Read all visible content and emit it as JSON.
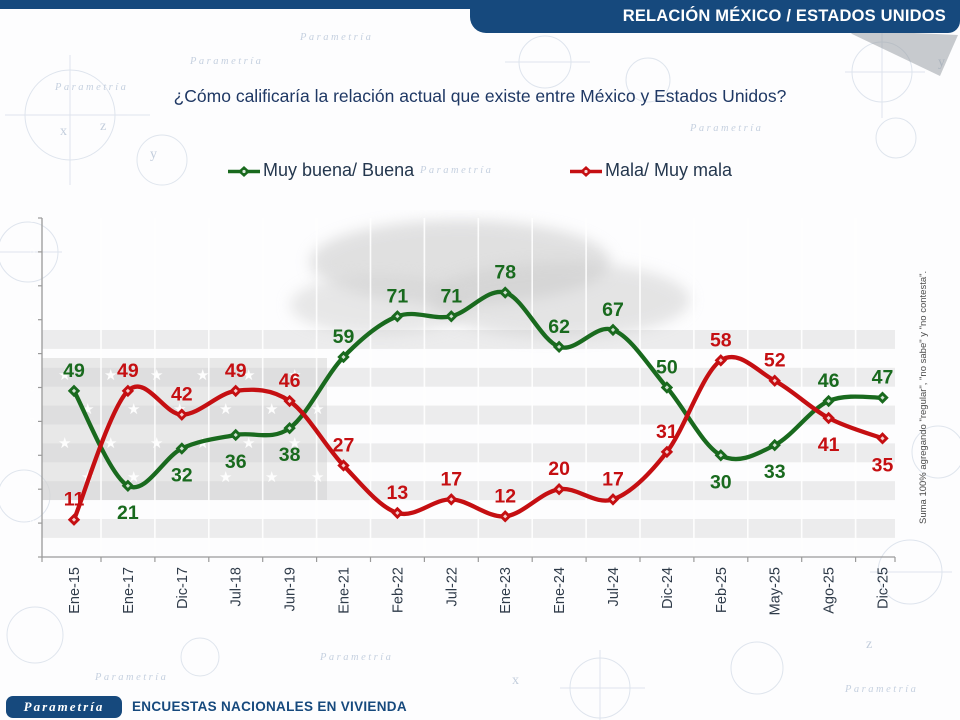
{
  "header": {
    "banner_title": "RELACIÓN MÉXICO / ESTADOS UNIDOS"
  },
  "question": "¿Cómo calificaría la relación actual que existe entre México y Estados Unidos?",
  "legend": [
    {
      "label": "Muy buena/ Buena",
      "color": "#196a1e"
    },
    {
      "label": "Mala/ Muy mala",
      "color": "#c50f12"
    }
  ],
  "chart_data": {
    "type": "line",
    "title": "¿Cómo calificaría la relación actual que existe entre México y Estados Unidos?",
    "categories": [
      "Ene-15",
      "Ene-17",
      "Dic-17",
      "Jul-18",
      "Jun-19",
      "Ene-21",
      "Feb-22",
      "Jul-22",
      "Ene-23",
      "Ene-24",
      "Jul-24",
      "Dic-24",
      "Feb-25",
      "May-25",
      "Ago-25",
      "Dic-25"
    ],
    "series": [
      {
        "name": "Muy buena/ Buena",
        "color": "#196a1e",
        "values": [
          49,
          21,
          32,
          36,
          38,
          59,
          71,
          71,
          78,
          62,
          67,
          50,
          30,
          33,
          46,
          47
        ],
        "label_side": [
          "above",
          "below",
          "below",
          "below",
          "below",
          "above",
          "above",
          "above",
          "above",
          "above",
          "above",
          "above",
          "below",
          "below",
          "above",
          "above"
        ]
      },
      {
        "name": "Mala/ Muy mala",
        "color": "#c50f12",
        "values": [
          11,
          49,
          42,
          49,
          46,
          27,
          13,
          17,
          12,
          20,
          17,
          31,
          58,
          52,
          41,
          35
        ],
        "label_side": [
          "above",
          "above",
          "above",
          "above",
          "above",
          "above",
          "above",
          "above",
          "above",
          "above",
          "above",
          "above",
          "above",
          "above",
          "below",
          "below"
        ]
      }
    ],
    "ylim": [
      0,
      100
    ],
    "y_ticks": [
      0,
      10,
      20,
      30,
      40,
      50,
      60,
      70,
      80,
      90,
      100
    ],
    "grid": "vertical category boundaries, white",
    "legend_position": "top",
    "x_tick_label_rotation": -90,
    "note": "Suma 100% agregando \"regular\", \"no sabe\" y \"no contesta\"."
  },
  "note": "Suma 100% agregando \"regular\", \"no sabe\" y \"no contesta\".",
  "footer": {
    "logo": "Parametría",
    "text": "ENCUESTAS NACIONALES EN VIVIENDA"
  },
  "decor": {
    "watermark": "Parametría",
    "letters": [
      "z",
      "y",
      "x",
      "z",
      "y",
      "x"
    ]
  },
  "colors": {
    "navy": "#16497d",
    "green": "#196a1e",
    "red": "#c50f12",
    "title_text": "#1f3864"
  }
}
